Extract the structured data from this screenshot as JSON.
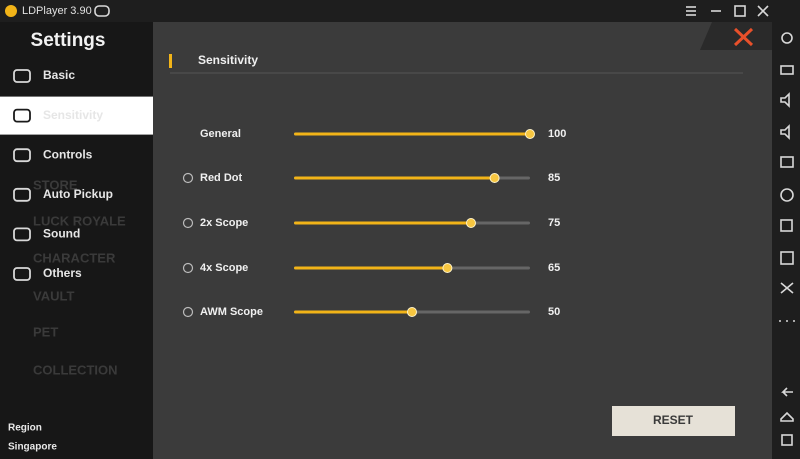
{
  "window": {
    "title": "LDPlayer 3.90"
  },
  "sidebar": {
    "title": "Settings",
    "menu": [
      {
        "label": "Basic",
        "selected": false
      },
      {
        "label": "Sensitivity",
        "selected": true
      },
      {
        "label": "Controls",
        "selected": false
      },
      {
        "label": "Auto Pickup",
        "selected": false
      },
      {
        "label": "Sound",
        "selected": false
      },
      {
        "label": "Others",
        "selected": false
      }
    ],
    "background_labels": [
      "STORE",
      "LUCK ROYALE",
      "CHARACTER",
      "VAULT",
      "PET",
      "COLLECTION"
    ],
    "region_label": "Region",
    "region": "Singapore"
  },
  "sensitivity": {
    "title": "Sensitivity",
    "range": [
      0,
      100
    ],
    "sliders": [
      {
        "label": "General",
        "value": 100
      },
      {
        "label": "Red Dot",
        "value": 85
      },
      {
        "label": "2x Scope",
        "value": 75
      },
      {
        "label": "4x Scope",
        "value": 65
      },
      {
        "label": "AWM Scope",
        "value": 50
      }
    ],
    "reset_button": "RESET"
  }
}
